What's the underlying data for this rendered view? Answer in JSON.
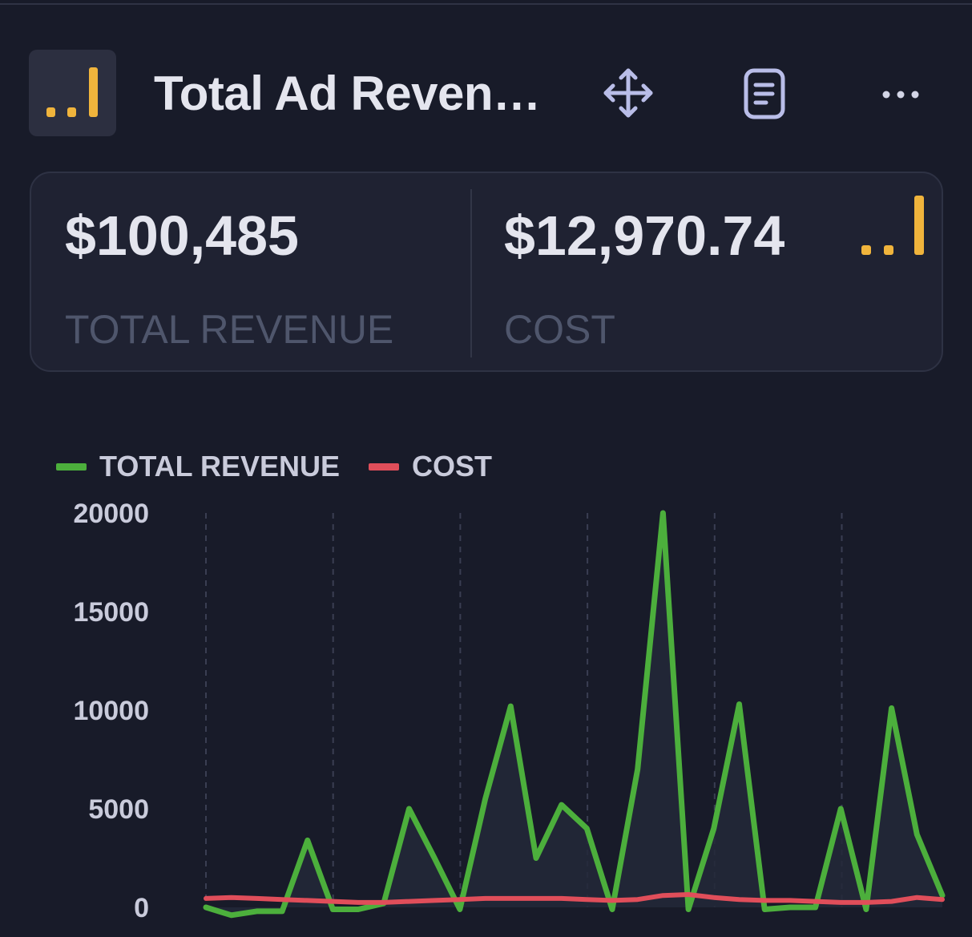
{
  "widget": {
    "title": "Total Ad Reven…",
    "app_icon": "bar-chart-icon",
    "actions": [
      {
        "name": "move",
        "icon": "move-arrows-icon"
      },
      {
        "name": "notes",
        "icon": "document-icon"
      },
      {
        "name": "more",
        "icon": "more-dots-icon"
      }
    ]
  },
  "stats": {
    "revenue": {
      "value": "$100,485",
      "label": "TOTAL REVENUE"
    },
    "cost": {
      "value": "$12,970.74",
      "label": "COST"
    }
  },
  "colors": {
    "background": "#181b29",
    "accent_yellow": "#f0b43c",
    "revenue_line": "#4caf3c",
    "cost_line": "#e04e5a",
    "icon_lavender": "#b9bde8"
  },
  "chart_data": {
    "type": "line",
    "legend_placement": "top-left",
    "grid": "vertical-dashed",
    "ylim": [
      0,
      20000
    ],
    "yticks": [
      0,
      5000,
      10000,
      15000,
      20000
    ],
    "series": [
      {
        "name": "TOTAL REVENUE",
        "color": "#4caf3c",
        "values": [
          0,
          -400,
          -200,
          -200,
          3400,
          -100,
          -100,
          200,
          5000,
          2500,
          -100,
          5500,
          10200,
          2500,
          5200,
          4000,
          -100,
          7000,
          20000,
          -100,
          4000,
          10300,
          -100,
          0,
          0,
          5000,
          -100,
          10100,
          3700,
          600
        ]
      },
      {
        "name": "COST",
        "color": "#e04e5a",
        "values": [
          450,
          500,
          450,
          400,
          350,
          300,
          250,
          250,
          300,
          350,
          400,
          450,
          450,
          450,
          450,
          400,
          350,
          400,
          600,
          650,
          500,
          400,
          350,
          350,
          300,
          250,
          250,
          300,
          500,
          400
        ]
      }
    ]
  }
}
